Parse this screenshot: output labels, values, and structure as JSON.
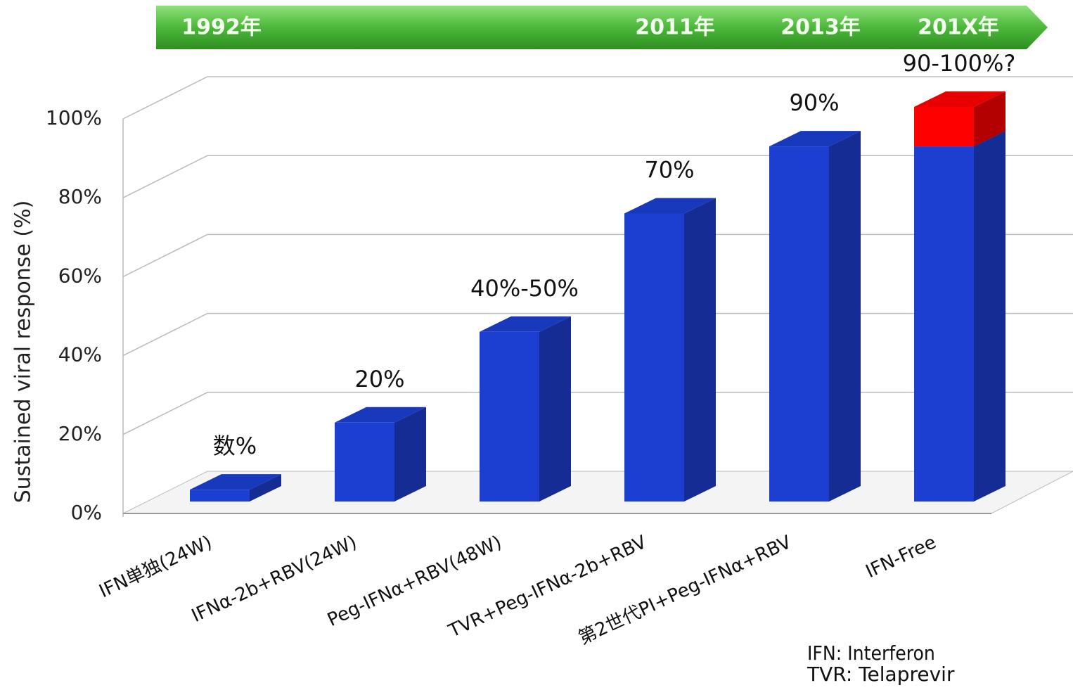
{
  "chart_data": {
    "type": "bar3d",
    "timeline": [
      "1992年",
      "2011年",
      "2013年",
      "201X年"
    ],
    "y_label": "Sustained viral response  (%)",
    "categories": [
      "IFN単独(24W)",
      "IFNα-2b+RBV(24W)",
      "Peg-IFNα+RBV(48W)",
      "TVR+Peg-IFNα-2b+RBV",
      "第2世代PI+Peg-IFNα+RBV",
      "IFN-Free"
    ],
    "series": [
      {
        "color": "#1c3fd2",
        "values": [
          3,
          20,
          43,
          73,
          90,
          90
        ]
      },
      {
        "color": "#ff0000",
        "values": [
          null,
          null,
          null,
          null,
          null,
          10
        ]
      }
    ],
    "annotations": [
      "数%",
      "20%",
      "40%-50%",
      "70%",
      "90%",
      "90-100%?"
    ],
    "ylim": [
      0,
      100
    ],
    "yticks": [
      {
        "value": 0,
        "label": "0%"
      },
      {
        "value": 20,
        "label": "20%"
      },
      {
        "value": 40,
        "label": "40%"
      },
      {
        "value": 60,
        "label": "60%"
      },
      {
        "value": 80,
        "label": "80%"
      },
      {
        "value": 100,
        "label": "100%"
      }
    ],
    "grid": true,
    "footnotes": [
      "IFN: Interferon",
      "TVR: Telaprevir"
    ]
  }
}
